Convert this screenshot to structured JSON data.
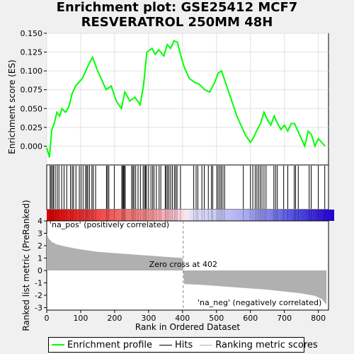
{
  "title_line1": "Enrichment plot: GSE25412 MCF7",
  "title_line2": "RESVERATROL 250MM 48H",
  "legend": {
    "enrichment": "Enrichment profile",
    "hits": "Hits",
    "ranking": "Ranking metric scores"
  },
  "colors": {
    "enrichment_line": "#00ff00",
    "hits": "#000000",
    "ranking_fill": "#b0b0b0",
    "pos_label": "#cc0000",
    "neg_label": "#1a1acc"
  },
  "chart_data": [
    {
      "type": "line",
      "name": "enrichment-profile",
      "ylabel": "Enrichment score (ES)",
      "xlim": [
        0,
        830
      ],
      "ylim": [
        -0.025,
        0.15
      ],
      "yticks": [
        "0.000",
        "0.025",
        "0.050",
        "0.075",
        "0.100",
        "0.125",
        "0.150"
      ],
      "grid": true,
      "x": [
        0,
        8,
        15,
        22,
        30,
        38,
        45,
        55,
        65,
        75,
        85,
        95,
        105,
        115,
        125,
        135,
        150,
        165,
        175,
        190,
        205,
        220,
        230,
        245,
        260,
        275,
        285,
        295,
        310,
        320,
        330,
        345,
        355,
        365,
        375,
        385,
        395,
        405,
        420,
        435,
        450,
        465,
        480,
        495,
        505,
        515,
        530,
        545,
        560,
        575,
        585,
        600,
        610,
        620,
        630,
        640,
        650,
        660,
        670,
        680,
        690,
        700,
        710,
        720,
        730,
        740,
        750,
        760,
        770,
        780,
        790,
        800,
        810,
        820
      ],
      "y": [
        -0.002,
        -0.015,
        0.022,
        0.03,
        0.045,
        0.04,
        0.05,
        0.045,
        0.052,
        0.07,
        0.08,
        0.085,
        0.09,
        0.1,
        0.11,
        0.118,
        0.1,
        0.085,
        0.075,
        0.08,
        0.06,
        0.05,
        0.072,
        0.06,
        0.065,
        0.055,
        0.08,
        0.125,
        0.13,
        0.122,
        0.128,
        0.12,
        0.135,
        0.13,
        0.14,
        0.138,
        0.12,
        0.105,
        0.09,
        0.085,
        0.082,
        0.075,
        0.072,
        0.085,
        0.097,
        0.1,
        0.08,
        0.06,
        0.04,
        0.025,
        0.015,
        0.005,
        0.012,
        0.022,
        0.03,
        0.045,
        0.035,
        0.028,
        0.04,
        0.03,
        0.022,
        0.028,
        0.02,
        0.03,
        0.03,
        0.02,
        0.01,
        0.0,
        0.02,
        0.015,
        0.0,
        0.01,
        0.005,
        0.0
      ]
    },
    {
      "type": "hits",
      "name": "hits",
      "x": [
        10,
        13,
        17,
        20,
        25,
        31,
        36,
        44,
        51,
        59,
        70,
        75,
        79,
        86,
        96,
        101,
        107,
        114,
        118,
        121,
        126,
        133,
        137,
        144,
        176,
        179,
        183,
        199,
        221,
        224,
        226,
        229,
        231,
        250,
        254,
        257,
        262,
        269,
        276,
        284,
        288,
        291,
        294,
        300,
        307,
        312,
        316,
        323,
        331,
        336,
        349,
        352,
        356,
        360,
        365,
        370,
        376,
        380,
        384,
        394,
        433,
        440,
        445,
        457,
        464,
        476,
        485,
        489,
        501,
        505,
        510,
        514,
        519,
        524,
        579,
        600,
        607,
        614,
        619,
        624,
        629,
        634,
        640,
        646,
        669,
        674,
        679,
        698,
        710,
        729,
        733,
        741,
        773,
        779,
        800,
        819
      ]
    },
    {
      "type": "area",
      "name": "ranking-metric",
      "xlabel": "Rank in Ordered Dataset",
      "ylabel": "Ranked list metric (PreRanked)",
      "xlim": [
        0,
        830
      ],
      "ylim": [
        -3.2,
        4
      ],
      "yticks": [
        "-3",
        "-2",
        "-1",
        "0",
        "1",
        "2",
        "3",
        "4"
      ],
      "xticks": [
        "0",
        "100",
        "200",
        "300",
        "400",
        "500",
        "600",
        "700",
        "800"
      ],
      "x": [
        0,
        5,
        15,
        30,
        60,
        100,
        150,
        200,
        250,
        300,
        350,
        400,
        402,
        405,
        450,
        500,
        550,
        600,
        650,
        700,
        750,
        790,
        810,
        822,
        824
      ],
      "y": [
        3.0,
        2.6,
        2.3,
        2.1,
        1.9,
        1.7,
        1.5,
        1.4,
        1.3,
        1.2,
        1.1,
        1.0,
        0.0,
        -1.1,
        -1.15,
        -1.25,
        -1.35,
        -1.45,
        -1.55,
        -1.7,
        -1.85,
        -2.05,
        -2.3,
        -2.7,
        -2.8
      ],
      "zero_cross_label": "Zero cross at 402",
      "pos_label": "'na_pos' (positively correlated)",
      "neg_label": "'na_neg' (negatively correlated)"
    }
  ]
}
